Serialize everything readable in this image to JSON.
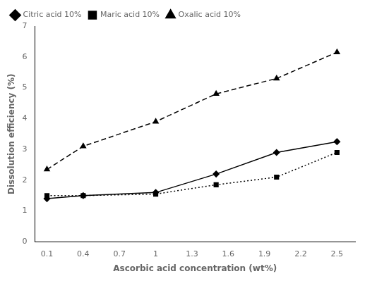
{
  "chart_data": {
    "type": "line",
    "x": [
      0.1,
      0.4,
      1.0,
      1.5,
      2.0,
      2.5
    ],
    "series": [
      {
        "name": "Citric acid 10%",
        "color": "#000000",
        "values": [
          1.4,
          1.5,
          1.6,
          2.2,
          2.9,
          3.25
        ],
        "marker": "diamond",
        "line_style": "solid"
      },
      {
        "name": "Maric acid 10%",
        "color": "#000000",
        "values": [
          1.5,
          1.5,
          1.55,
          1.85,
          2.1,
          2.9
        ],
        "marker": "square",
        "line_style": "dotted"
      },
      {
        "name": "Oxalic acid 10%",
        "color": "#000000",
        "values": [
          2.35,
          3.1,
          3.9,
          4.8,
          5.3,
          6.15
        ],
        "marker": "triangle",
        "line_style": "dashed"
      }
    ],
    "xlabel": "Ascorbic acid concentration (wt%)",
    "ylabel": "Dissolution efficiency (%)",
    "xlim": [
      0.0,
      2.65
    ],
    "xticks": [
      0.1,
      0.4,
      0.7,
      1,
      1.3,
      1.6,
      1.9,
      2.2,
      2.5
    ],
    "ylim": [
      0,
      7
    ],
    "yticks": [
      0,
      1,
      2,
      3,
      4,
      5,
      6,
      7
    ],
    "legend": "upper left",
    "grid": false
  }
}
